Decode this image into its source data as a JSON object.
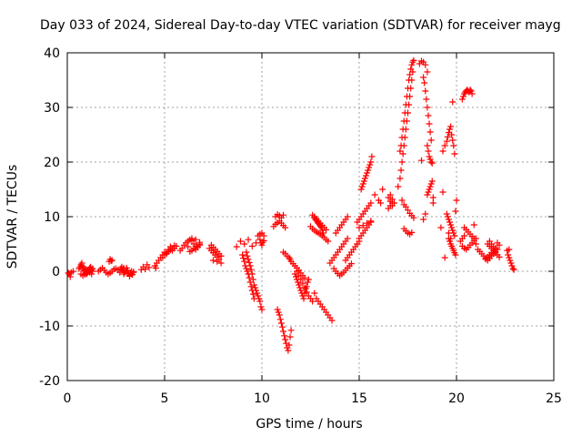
{
  "chart_data": {
    "type": "scatter",
    "title": "Day 033 of 2024, Sidereal Day-to-day VTEC variation (SDTVAR) for receiver mayg",
    "xlabel": "GPS time / hours",
    "ylabel": "SDTVAR / TECUs",
    "xlim": [
      0,
      25
    ],
    "ylim": [
      -20,
      40
    ],
    "x_ticks": [
      0,
      5,
      10,
      15,
      20,
      25
    ],
    "y_ticks": [
      -20,
      -10,
      0,
      10,
      20,
      30,
      40
    ],
    "x_tick_labels": [
      "0",
      "5",
      "10",
      "15",
      "20",
      "25"
    ],
    "y_tick_labels": [
      "-20",
      "-10",
      "0",
      "10",
      "20",
      "30",
      "40"
    ],
    "grid": true,
    "marker": "+",
    "color": "#ff0000",
    "series": [
      {
        "name": "SDTVAR",
        "x": [
          0.05,
          0.1,
          0.15,
          0.2,
          0.3,
          0.6,
          0.65,
          0.7,
          0.75,
          0.8,
          0.85,
          0.9,
          0.95,
          1.0,
          1.05,
          1.1,
          1.15,
          1.2,
          1.25,
          1.3,
          0.7,
          0.8,
          0.9,
          1.0,
          1.1,
          1.2,
          1.3,
          0.75,
          0.85,
          0.95,
          1.05,
          1.15,
          1.25,
          1.6,
          1.7,
          1.8,
          1.9,
          2.0,
          2.1,
          2.2,
          2.3,
          2.4,
          2.15,
          2.2,
          2.25,
          2.3,
          2.5,
          2.6,
          2.7,
          2.75,
          2.8,
          2.85,
          2.9,
          2.95,
          3.0,
          3.05,
          3.1,
          3.15,
          3.2,
          3.25,
          3.3,
          3.35,
          3.4,
          2.8,
          2.9,
          3.0,
          3.1,
          3.2,
          3.3,
          3.4,
          3.8,
          3.9,
          4.0,
          4.1,
          4.2,
          4.5,
          4.55,
          4.6,
          4.7,
          4.8,
          4.9,
          5.0,
          5.1,
          5.2,
          5.3,
          5.4,
          5.5,
          5.6,
          4.9,
          5.0,
          5.1,
          5.2,
          5.3,
          5.4,
          5.5,
          5.8,
          5.9,
          6.0,
          6.1,
          6.2,
          6.3,
          6.4,
          6.5,
          6.6,
          6.7,
          6.8,
          6.3,
          6.4,
          6.5,
          6.6,
          6.7,
          6.8,
          6.2,
          6.4,
          6.6,
          6.8,
          7.3,
          7.4,
          7.5,
          7.6,
          7.7,
          7.8,
          7.9,
          7.4,
          7.5,
          7.6,
          7.7,
          7.8,
          7.9,
          7.5,
          7.7,
          7.9,
          8.7,
          8.9,
          9.1,
          9.3,
          9.5,
          9.7,
          9.0,
          9.05,
          9.1,
          9.15,
          9.2,
          9.25,
          9.3,
          9.35,
          9.4,
          9.45,
          9.5,
          9.55,
          9.6,
          9.2,
          9.25,
          9.3,
          9.35,
          9.4,
          9.45,
          9.5,
          9.55,
          9.6,
          9.65,
          9.7,
          9.75,
          9.8,
          9.85,
          9.9,
          9.95,
          10.0,
          9.9,
          9.95,
          10.0,
          10.05,
          10.1,
          9.8,
          9.9,
          10.0,
          10.1,
          10.6,
          10.7,
          10.8,
          10.9,
          11.0,
          11.1,
          11.2,
          10.7,
          10.8,
          10.9,
          11.0,
          11.1,
          10.8,
          10.85,
          10.9,
          10.95,
          11.0,
          11.05,
          11.1,
          11.15,
          11.2,
          11.25,
          11.3,
          11.35,
          11.4,
          11.45,
          11.5,
          11.1,
          11.2,
          11.3,
          11.4,
          11.45,
          11.5,
          11.6,
          11.7,
          11.8,
          11.9,
          12.0,
          12.1,
          12.2,
          11.7,
          11.75,
          11.8,
          11.85,
          11.9,
          11.95,
          12.0,
          12.05,
          12.1,
          12.15,
          12.2,
          12.25,
          12.3,
          12.35,
          12.4,
          11.8,
          11.9,
          12.0,
          12.1,
          12.2,
          12.3,
          12.4,
          12.5,
          12.6,
          12.7,
          12.6,
          12.7,
          12.8,
          12.9,
          13.0,
          13.1,
          13.2,
          13.3,
          12.7,
          12.75,
          12.8,
          12.85,
          12.9,
          12.95,
          13.0,
          13.05,
          13.1,
          13.15,
          12.5,
          12.6,
          12.7,
          12.8,
          12.9,
          13.0,
          13.1,
          13.2,
          13.3,
          13.4,
          12.8,
          12.9,
          13.0,
          13.1,
          13.2,
          13.3,
          13.4,
          13.5,
          13.6,
          13.5,
          13.6,
          13.7,
          13.8,
          13.9,
          14.0,
          14.1,
          14.2,
          14.3,
          14.4,
          13.8,
          13.9,
          14.0,
          14.1,
          14.2,
          14.3,
          14.4,
          13.7,
          13.8,
          13.9,
          14.0,
          14.1,
          14.2,
          14.3,
          14.4,
          14.5,
          14.6,
          14.3,
          14.4,
          14.5,
          14.6,
          14.7,
          14.8,
          14.9,
          15.0,
          14.9,
          15.0,
          15.1,
          15.2,
          15.3,
          15.4,
          15.5,
          15.6,
          15.0,
          15.1,
          15.2,
          15.3,
          15.4,
          15.5,
          15.6,
          15.1,
          15.15,
          15.2,
          15.25,
          15.3,
          15.35,
          15.4,
          15.45,
          15.5,
          15.55,
          15.6,
          15.65,
          15.0,
          15.2,
          15.4,
          15.6,
          14.9,
          15.8,
          16.0,
          16.1,
          16.2,
          16.5,
          16.6,
          16.7,
          16.6,
          16.7,
          16.8,
          16.5,
          16.6,
          16.7,
          17.1,
          17.15,
          17.2,
          17.25,
          17.3,
          17.35,
          17.4,
          17.45,
          17.5,
          17.55,
          17.6,
          17.65,
          17.7,
          17.75,
          17.8,
          17.1,
          17.15,
          17.2,
          17.25,
          17.3,
          17.35,
          17.4,
          17.45,
          17.5,
          17.55,
          17.6,
          17.65,
          17.7,
          17.75,
          17.2,
          17.3,
          17.4,
          17.5,
          17.6,
          17.7,
          17.8,
          17.3,
          17.4,
          17.5,
          17.6,
          17.7,
          17.0,
          18.1,
          18.2,
          18.3,
          18.4,
          18.5,
          18.3,
          18.35,
          18.4,
          18.45,
          18.5,
          18.55,
          18.6,
          18.65,
          18.7,
          18.5,
          18.55,
          18.6,
          18.65,
          18.7,
          18.75,
          18.8,
          18.5,
          18.55,
          18.6,
          18.65,
          18.7,
          18.75,
          18.8,
          18.4,
          18.3,
          18.2,
          19.3,
          19.4,
          19.5,
          19.55,
          19.6,
          19.65,
          19.7,
          19.75,
          19.8,
          19.85,
          19.9,
          19.95,
          19.5,
          19.55,
          19.6,
          19.65,
          19.7,
          19.75,
          19.8,
          19.85,
          19.9,
          19.6,
          19.65,
          19.7,
          19.75,
          19.8,
          19.85,
          19.9,
          19.95,
          20.0,
          19.4,
          19.3,
          19.2,
          19.6,
          19.7,
          19.8,
          20.3,
          20.35,
          20.4,
          20.45,
          20.5,
          20.55,
          20.6,
          20.65,
          20.7,
          20.75,
          20.8,
          20.9,
          20.4,
          20.5,
          20.6,
          20.7,
          20.8,
          20.9,
          21.0,
          20.3,
          20.4,
          20.5,
          20.6,
          20.7,
          20.8,
          20.9,
          21.0,
          20.2,
          20.3,
          20.4,
          21.1,
          21.2,
          21.3,
          21.4,
          21.5,
          21.6,
          21.7,
          21.8,
          21.9,
          22.0,
          22.1,
          21.6,
          21.7,
          21.8,
          21.9,
          22.0,
          22.1,
          22.2,
          21.5,
          21.6,
          21.7,
          21.8,
          21.9,
          22.0,
          21.7,
          21.8,
          21.9,
          22.0,
          22.1,
          22.2,
          22.6,
          22.65,
          22.7,
          22.75,
          22.8,
          22.85,
          22.9,
          22.95,
          22.7
        ],
        "y": [
          -0.3,
          -0.5,
          -1.0,
          -0.2,
          0.0,
          0.5,
          0.8,
          1.2,
          1.5,
          0.5,
          0.2,
          0.0,
          -0.3,
          -0.5,
          -0.2,
          0.3,
          0.6,
          0.8,
          0.3,
          0.0,
          -0.5,
          -0.8,
          -0.6,
          -0.3,
          0.0,
          0.2,
          0.5,
          1.0,
          0.7,
          0.4,
          0.2,
          -0.2,
          -0.5,
          0.0,
          0.3,
          0.6,
          0.2,
          -0.2,
          -0.5,
          -0.3,
          0.0,
          0.4,
          1.8,
          2.2,
          1.9,
          2.0,
          0.5,
          0.2,
          -0.2,
          0.5,
          0.8,
          0.3,
          -0.5,
          -0.2,
          0.0,
          0.6,
          0.2,
          -0.4,
          -0.8,
          -0.3,
          0.0,
          -0.6,
          -0.2,
          0.3,
          0.6,
          0.1,
          -0.4,
          -0.9,
          -0.5,
          -0.1,
          0.3,
          0.8,
          0.4,
          1.2,
          0.7,
          1.0,
          0.6,
          1.5,
          2.0,
          2.5,
          3.0,
          3.5,
          3.2,
          4.0,
          4.5,
          3.8,
          4.2,
          4.6,
          2.5,
          3.0,
          3.3,
          3.6,
          3.9,
          4.2,
          4.7,
          3.8,
          4.2,
          4.8,
          5.2,
          5.5,
          5.8,
          5.6,
          5.0,
          4.6,
          4.4,
          4.8,
          3.6,
          3.8,
          4.2,
          4.0,
          4.5,
          5.0,
          4.5,
          6.0,
          5.8,
          5.3,
          4.2,
          3.8,
          3.4,
          3.0,
          2.6,
          2.2,
          2.8,
          4.8,
          4.4,
          4.0,
          3.6,
          3.2,
          2.8,
          2.0,
          1.8,
          1.5,
          4.5,
          5.5,
          5.0,
          5.8,
          4.6,
          5.2,
          3.0,
          2.4,
          1.8,
          1.0,
          0.5,
          0.0,
          -0.5,
          -1.2,
          -2.0,
          -2.8,
          -3.5,
          -4.2,
          -5.0,
          3.5,
          2.8,
          2.2,
          1.6,
          1.0,
          0.3,
          -0.5,
          -1.5,
          -2.5,
          -3.0,
          -3.5,
          -4.0,
          -4.5,
          -5.0,
          -5.5,
          -6.5,
          -7.0,
          5.8,
          5.2,
          4.8,
          5.3,
          5.6,
          6.5,
          6.8,
          7.0,
          6.5,
          8.2,
          8.6,
          8.9,
          9.2,
          8.8,
          8.4,
          8.0,
          10.0,
          10.4,
          10.2,
          9.8,
          10.3,
          -7.0,
          -7.5,
          -8.0,
          -8.8,
          -9.5,
          -10.2,
          -11.0,
          -11.8,
          -12.5,
          -13.2,
          -14.0,
          -14.5,
          -13.5,
          -12.0,
          -10.8,
          3.5,
          3.2,
          2.8,
          2.5,
          2.2,
          1.8,
          1.4,
          1.0,
          0.6,
          0.2,
          -0.3,
          -0.8,
          -1.2,
          -0.5,
          -1.0,
          -1.5,
          -2.0,
          -2.5,
          -3.0,
          -3.5,
          -4.0,
          -4.5,
          -5.0,
          -4.0,
          -3.2,
          -2.8,
          -2.0,
          -1.5,
          0.0,
          -0.8,
          -1.5,
          -2.2,
          -3.0,
          -3.8,
          -4.5,
          -5.0,
          -5.5,
          -4.0,
          10.3,
          10.0,
          9.6,
          9.2,
          8.8,
          8.4,
          8.0,
          7.6,
          9.8,
          9.5,
          9.3,
          9.0,
          8.8,
          8.6,
          8.3,
          8.0,
          7.5,
          7.0,
          8.2,
          7.8,
          7.5,
          7.2,
          7.0,
          6.8,
          6.5,
          6.2,
          5.8,
          5.5,
          -5.0,
          -5.5,
          -6.0,
          -6.5,
          -7.0,
          -7.5,
          -8.0,
          -8.5,
          -9.0,
          1.5,
          2.0,
          2.5,
          3.0,
          3.5,
          4.0,
          4.5,
          5.0,
          5.5,
          6.0,
          7.0,
          7.5,
          8.0,
          8.5,
          9.0,
          9.5,
          10.0,
          0.5,
          0.0,
          -0.4,
          -0.8,
          -0.5,
          -0.2,
          0.2,
          0.6,
          1.0,
          1.4,
          2.0,
          2.5,
          3.0,
          3.5,
          4.0,
          4.5,
          5.0,
          5.5,
          9.0,
          9.5,
          10.0,
          10.5,
          11.0,
          11.5,
          12.0,
          12.5,
          6.0,
          6.5,
          7.0,
          7.5,
          8.0,
          8.5,
          9.0,
          15.0,
          15.5,
          16.0,
          16.5,
          17.0,
          17.5,
          18.0,
          18.5,
          19.0,
          19.5,
          20.0,
          21.0,
          8.0,
          8.4,
          8.8,
          9.2,
          5.0,
          14.0,
          13.0,
          12.5,
          15.0,
          13.5,
          12.8,
          12.0,
          14.0,
          13.2,
          12.5,
          11.5,
          12.0,
          12.5,
          22.0,
          23.0,
          24.5,
          26.0,
          27.5,
          29.0,
          30.5,
          32.0,
          33.5,
          35.0,
          36.0,
          37.0,
          37.8,
          38.3,
          38.6,
          17.0,
          18.5,
          20.0,
          21.5,
          23.0,
          24.5,
          26.0,
          27.5,
          29.0,
          30.5,
          32.0,
          33.5,
          35.0,
          36.5,
          13.0,
          12.2,
          11.8,
          11.2,
          10.6,
          10.2,
          9.8,
          7.8,
          7.4,
          7.0,
          6.8,
          7.1,
          15.5,
          38.0,
          38.5,
          38.3,
          37.8,
          36.5,
          35.5,
          34.5,
          33.0,
          31.5,
          30.0,
          28.5,
          27.0,
          25.5,
          24.0,
          23.0,
          22.0,
          21.0,
          20.5,
          20.0,
          19.8,
          13.5,
          14.0,
          14.5,
          15.0,
          15.5,
          16.0,
          16.5,
          12.5,
          10.5,
          9.5,
          20.3,
          22.0,
          23.0,
          23.8,
          24.6,
          25.4,
          26.0,
          26.5,
          25.0,
          24.0,
          23.0,
          21.5,
          11.0,
          10.5,
          10.0,
          9.5,
          9.0,
          8.5,
          8.0,
          7.5,
          7.0,
          6.5,
          6.0,
          5.5,
          5.0,
          4.6,
          4.2,
          3.8,
          3.4,
          3.0,
          13.0,
          2.5,
          14.5,
          8.0,
          7.0,
          6.0,
          31.0,
          31.5,
          32.0,
          32.5,
          32.8,
          33.0,
          33.2,
          33.0,
          32.8,
          33.2,
          33.0,
          32.5,
          8.5,
          8.0,
          7.6,
          7.2,
          6.8,
          6.4,
          6.0,
          5.0,
          4.6,
          4.2,
          4.0,
          4.4,
          4.8,
          5.2,
          5.6,
          6.0,
          5.5,
          6.0,
          6.5,
          4.0,
          3.6,
          3.2,
          2.8,
          2.4,
          2.0,
          2.4,
          2.8,
          3.2,
          3.6,
          4.0,
          5.0,
          4.6,
          4.2,
          3.8,
          3.4,
          3.0,
          2.6,
          2.2,
          2.6,
          3.0,
          3.4,
          3.8,
          4.2,
          5.5,
          5.0,
          4.5,
          4.0,
          5.2,
          4.8,
          3.8,
          3.0,
          2.5,
          2.0,
          1.5,
          1.0,
          0.5,
          0.3,
          4.0
        ]
      }
    ]
  }
}
